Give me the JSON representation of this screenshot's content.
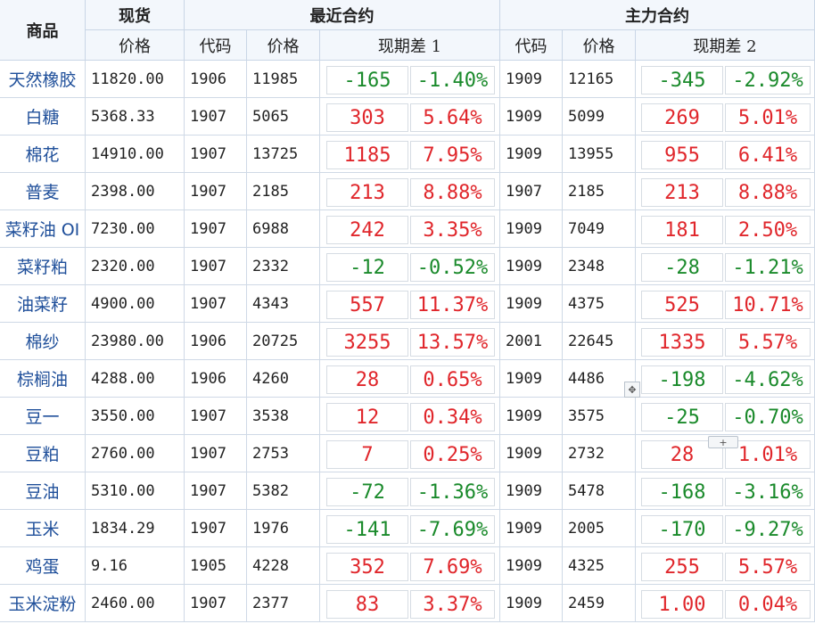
{
  "headers": {
    "product": "商品",
    "spot": "现货",
    "nearest": "最近合约",
    "main": "主力合约",
    "price": "价格",
    "code": "代码",
    "basis1": "现期差 1",
    "basis2": "现期差 2"
  },
  "colors": {
    "up": "#e0262b",
    "down": "#1a8a2b",
    "name": "#1f4f9a",
    "header_bg": "#f3f7fc"
  },
  "rows": [
    {
      "name": "天然橡胶",
      "spot": "11820.00",
      "n_code": "1906",
      "n_price": "11985",
      "n_diff": "-165",
      "n_pct": "-1.40%",
      "m_code": "1909",
      "m_price": "12165",
      "m_diff": "-345",
      "m_pct": "-2.92%",
      "n_dir": "down",
      "m_dir": "down"
    },
    {
      "name": "白糖",
      "spot": "5368.33",
      "n_code": "1907",
      "n_price": "5065",
      "n_diff": "303",
      "n_pct": "5.64%",
      "m_code": "1909",
      "m_price": "5099",
      "m_diff": "269",
      "m_pct": "5.01%",
      "n_dir": "up",
      "m_dir": "up"
    },
    {
      "name": "棉花",
      "spot": "14910.00",
      "n_code": "1907",
      "n_price": "13725",
      "n_diff": "1185",
      "n_pct": "7.95%",
      "m_code": "1909",
      "m_price": "13955",
      "m_diff": "955",
      "m_pct": "6.41%",
      "n_dir": "up",
      "m_dir": "up"
    },
    {
      "name": "普麦",
      "spot": "2398.00",
      "n_code": "1907",
      "n_price": "2185",
      "n_diff": "213",
      "n_pct": "8.88%",
      "m_code": "1907",
      "m_price": "2185",
      "m_diff": "213",
      "m_pct": "8.88%",
      "n_dir": "up",
      "m_dir": "up"
    },
    {
      "name": "菜籽油 OI",
      "spot": "7230.00",
      "n_code": "1907",
      "n_price": "6988",
      "n_diff": "242",
      "n_pct": "3.35%",
      "m_code": "1909",
      "m_price": "7049",
      "m_diff": "181",
      "m_pct": "2.50%",
      "n_dir": "up",
      "m_dir": "up"
    },
    {
      "name": "菜籽粕",
      "spot": "2320.00",
      "n_code": "1907",
      "n_price": "2332",
      "n_diff": "-12",
      "n_pct": "-0.52%",
      "m_code": "1909",
      "m_price": "2348",
      "m_diff": "-28",
      "m_pct": "-1.21%",
      "n_dir": "down",
      "m_dir": "down"
    },
    {
      "name": "油菜籽",
      "spot": "4900.00",
      "n_code": "1907",
      "n_price": "4343",
      "n_diff": "557",
      "n_pct": "11.37%",
      "m_code": "1909",
      "m_price": "4375",
      "m_diff": "525",
      "m_pct": "10.71%",
      "n_dir": "up",
      "m_dir": "up"
    },
    {
      "name": "棉纱",
      "spot": "23980.00",
      "n_code": "1906",
      "n_price": "20725",
      "n_diff": "3255",
      "n_pct": "13.57%",
      "m_code": "2001",
      "m_price": "22645",
      "m_diff": "1335",
      "m_pct": "5.57%",
      "n_dir": "up",
      "m_dir": "up"
    },
    {
      "name": "棕榈油",
      "spot": "4288.00",
      "n_code": "1906",
      "n_price": "4260",
      "n_diff": "28",
      "n_pct": "0.65%",
      "m_code": "1909",
      "m_price": "4486",
      "m_diff": "-198",
      "m_pct": "-4.62%",
      "n_dir": "up",
      "m_dir": "down"
    },
    {
      "name": "豆一",
      "spot": "3550.00",
      "n_code": "1907",
      "n_price": "3538",
      "n_diff": "12",
      "n_pct": "0.34%",
      "m_code": "1909",
      "m_price": "3575",
      "m_diff": "-25",
      "m_pct": "-0.70%",
      "n_dir": "up",
      "m_dir": "down"
    },
    {
      "name": "豆粕",
      "spot": "2760.00",
      "n_code": "1907",
      "n_price": "2753",
      "n_diff": "7",
      "n_pct": "0.25%",
      "m_code": "1909",
      "m_price": "2732",
      "m_diff": "28",
      "m_pct": "1.01%",
      "n_dir": "up",
      "m_dir": "up"
    },
    {
      "name": "豆油",
      "spot": "5310.00",
      "n_code": "1907",
      "n_price": "5382",
      "n_diff": "-72",
      "n_pct": "-1.36%",
      "m_code": "1909",
      "m_price": "5478",
      "m_diff": "-168",
      "m_pct": "-3.16%",
      "n_dir": "down",
      "m_dir": "down"
    },
    {
      "name": "玉米",
      "spot": "1834.29",
      "n_code": "1907",
      "n_price": "1976",
      "n_diff": "-141",
      "n_pct": "-7.69%",
      "m_code": "1909",
      "m_price": "2005",
      "m_diff": "-170",
      "m_pct": "-9.27%",
      "n_dir": "down",
      "m_dir": "down"
    },
    {
      "name": "鸡蛋",
      "spot": "9.16",
      "n_code": "1905",
      "n_price": "4228",
      "n_diff": "352",
      "n_pct": "7.69%",
      "m_code": "1909",
      "m_price": "4325",
      "m_diff": "255",
      "m_pct": "5.57%",
      "n_dir": "up",
      "m_dir": "up"
    },
    {
      "name": "玉米淀粉",
      "spot": "2460.00",
      "n_code": "1907",
      "n_price": "2377",
      "n_diff": "83",
      "n_pct": "3.37%",
      "m_code": "1909",
      "m_price": "2459",
      "m_diff": "1.00",
      "m_pct": "0.04%",
      "n_dir": "up",
      "m_dir": "up"
    }
  ],
  "widgets": {
    "move_handle": "move-icon",
    "add_button": "+"
  }
}
